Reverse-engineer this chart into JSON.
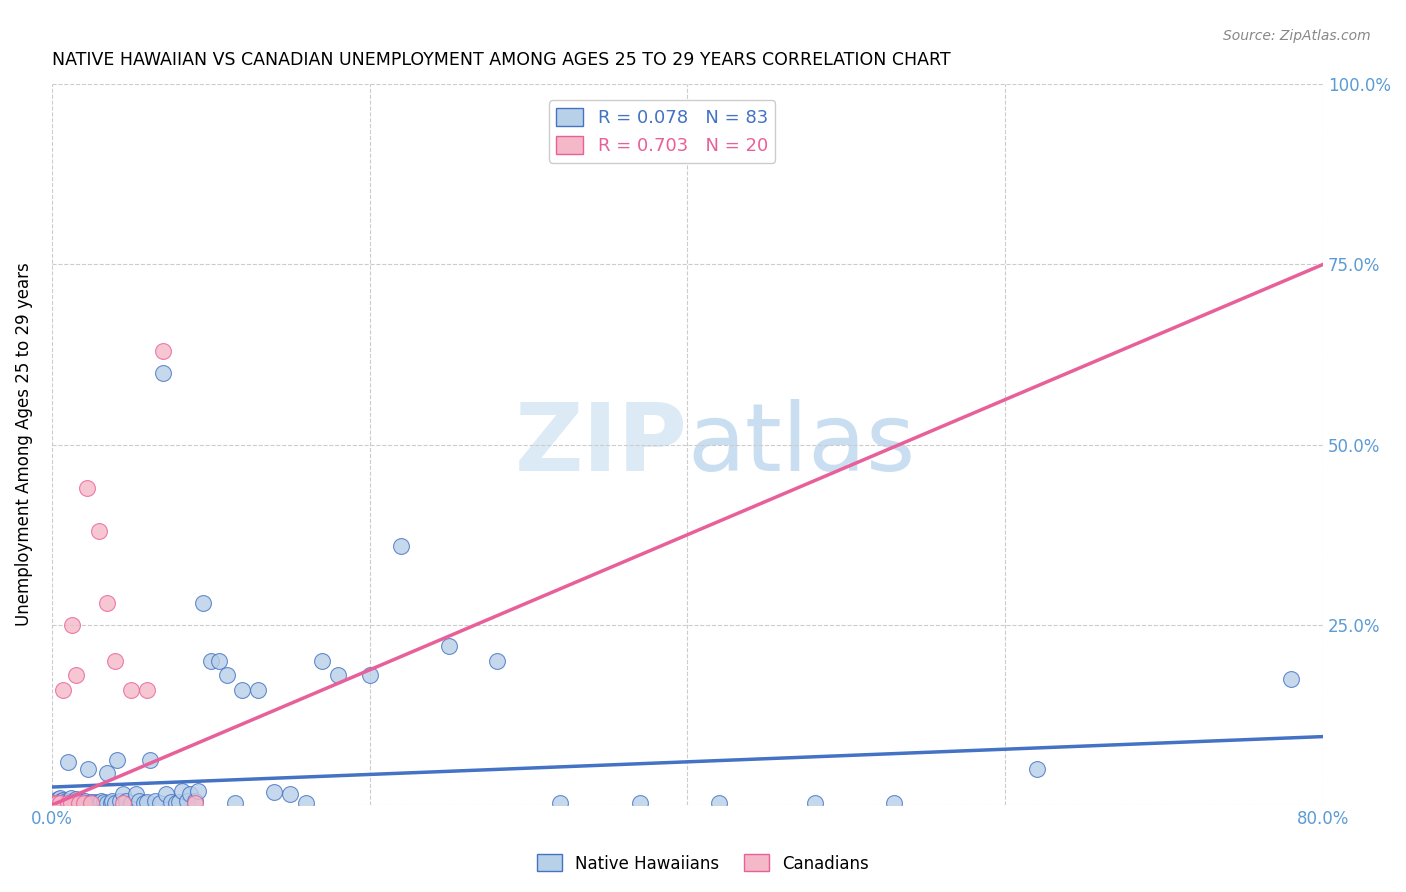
{
  "title": "NATIVE HAWAIIAN VS CANADIAN UNEMPLOYMENT AMONG AGES 25 TO 29 YEARS CORRELATION CHART",
  "source": "Source: ZipAtlas.com",
  "ylabel": "Unemployment Among Ages 25 to 29 years",
  "xlim": [
    0,
    0.8
  ],
  "ylim": [
    0,
    1.0
  ],
  "xticks": [
    0.0,
    0.2,
    0.4,
    0.6,
    0.8
  ],
  "yticks": [
    0.0,
    0.25,
    0.5,
    0.75,
    1.0
  ],
  "xticklabels_show": [
    "0.0%",
    "80.0%"
  ],
  "xticklabels_pos": [
    0.0,
    0.8
  ],
  "yticklabels": [
    "",
    "25.0%",
    "50.0%",
    "75.0%",
    "100.0%"
  ],
  "blue_R": 0.078,
  "blue_N": 83,
  "pink_R": 0.703,
  "pink_N": 20,
  "blue_color": "#b8d0e8",
  "pink_color": "#f5b8c8",
  "blue_line_color": "#4472c4",
  "pink_line_color": "#e8609a",
  "tick_label_color": "#5b9bd5",
  "watermark_color": "#d8eaf8",
  "blue_scatter_x": [
    0.002,
    0.004,
    0.005,
    0.006,
    0.007,
    0.008,
    0.009,
    0.01,
    0.01,
    0.011,
    0.012,
    0.012,
    0.013,
    0.014,
    0.015,
    0.015,
    0.016,
    0.017,
    0.018,
    0.018,
    0.019,
    0.02,
    0.021,
    0.022,
    0.023,
    0.024,
    0.025,
    0.026,
    0.027,
    0.028,
    0.03,
    0.031,
    0.033,
    0.035,
    0.035,
    0.037,
    0.038,
    0.04,
    0.041,
    0.043,
    0.045,
    0.047,
    0.05,
    0.053,
    0.055,
    0.058,
    0.06,
    0.062,
    0.065,
    0.068,
    0.07,
    0.072,
    0.075,
    0.078,
    0.08,
    0.082,
    0.085,
    0.087,
    0.09,
    0.092,
    0.095,
    0.1,
    0.105,
    0.11,
    0.115,
    0.12,
    0.13,
    0.14,
    0.15,
    0.16,
    0.17,
    0.18,
    0.2,
    0.22,
    0.25,
    0.28,
    0.32,
    0.37,
    0.42,
    0.48,
    0.53,
    0.62,
    0.78
  ],
  "blue_scatter_y": [
    0.005,
    0.008,
    0.01,
    0.005,
    0.007,
    0.003,
    0.005,
    0.003,
    0.06,
    0.005,
    0.004,
    0.01,
    0.003,
    0.005,
    0.003,
    0.008,
    0.005,
    0.003,
    0.003,
    0.007,
    0.004,
    0.003,
    0.005,
    0.003,
    0.05,
    0.003,
    0.004,
    0.003,
    0.004,
    0.003,
    0.003,
    0.005,
    0.004,
    0.003,
    0.045,
    0.003,
    0.006,
    0.003,
    0.062,
    0.005,
    0.016,
    0.005,
    0.003,
    0.016,
    0.005,
    0.003,
    0.004,
    0.062,
    0.005,
    0.003,
    0.6,
    0.016,
    0.004,
    0.003,
    0.004,
    0.02,
    0.005,
    0.016,
    0.005,
    0.02,
    0.28,
    0.2,
    0.2,
    0.18,
    0.003,
    0.16,
    0.16,
    0.018,
    0.016,
    0.003,
    0.2,
    0.18,
    0.18,
    0.36,
    0.22,
    0.2,
    0.003,
    0.003,
    0.003,
    0.003,
    0.003,
    0.05,
    0.175
  ],
  "pink_scatter_x": [
    0.002,
    0.003,
    0.005,
    0.007,
    0.01,
    0.012,
    0.013,
    0.015,
    0.017,
    0.02,
    0.022,
    0.025,
    0.03,
    0.035,
    0.04,
    0.045,
    0.05,
    0.06,
    0.07,
    0.09
  ],
  "pink_scatter_y": [
    0.003,
    0.003,
    0.003,
    0.16,
    0.003,
    0.003,
    0.25,
    0.18,
    0.003,
    0.003,
    0.44,
    0.003,
    0.38,
    0.28,
    0.2,
    0.003,
    0.16,
    0.16,
    0.63,
    0.003
  ],
  "blue_line_x": [
    0.0,
    0.8
  ],
  "blue_line_y": [
    0.025,
    0.095
  ],
  "pink_line_x": [
    0.0,
    0.8
  ],
  "pink_line_y": [
    0.0,
    0.75
  ]
}
